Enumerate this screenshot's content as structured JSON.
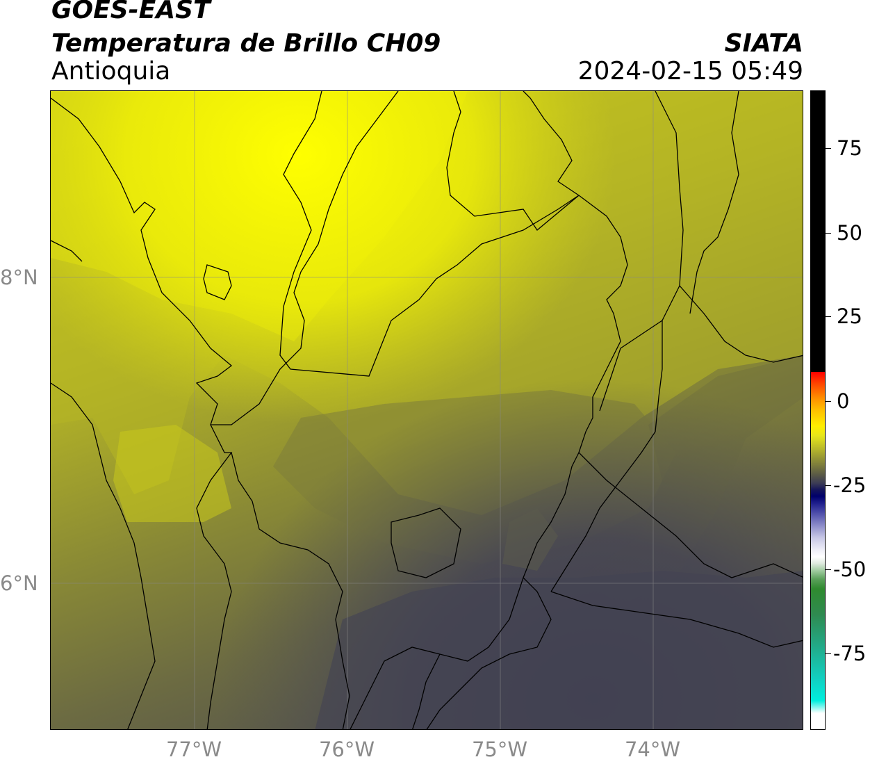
{
  "header": {
    "satellite": "GOES-EAST",
    "product": "Temperatura de Brillo CH09",
    "region": "Antioquia",
    "agency": "SIATA",
    "datetime": "2024-02-15 05:49"
  },
  "map": {
    "lon_range": [
      -77.96,
      -73.04
    ],
    "lat_range": [
      5.01,
      9.19
    ],
    "lat_labels": [
      {
        "lat": 8,
        "label": "8°N"
      },
      {
        "lat": 6,
        "label": "6°N"
      }
    ],
    "lon_labels": [
      {
        "lon": -77,
        "label": "77°W"
      },
      {
        "lon": -76,
        "label": "76°W"
      },
      {
        "lon": -75,
        "label": "75°W"
      },
      {
        "lon": -74,
        "label": "74°W"
      }
    ],
    "colors": {
      "warm_yellow": "#f5f500",
      "olive": "#8a8a35",
      "dark_olive": "#6b6b40",
      "cold_gray": "#4a4a55",
      "coldest": "#3e3d52",
      "borders": "#000000",
      "gridlines": "#888888"
    }
  },
  "colorbar": {
    "min": -94,
    "max": 92,
    "ticks": [
      {
        "value": 75,
        "label": "75"
      },
      {
        "value": 50,
        "label": "50"
      },
      {
        "value": 25,
        "label": "25"
      },
      {
        "value": 0,
        "label": "0"
      },
      {
        "value": -25,
        "label": "-25"
      },
      {
        "value": -50,
        "label": "-50"
      },
      {
        "value": -75,
        "label": "-75"
      }
    ]
  }
}
